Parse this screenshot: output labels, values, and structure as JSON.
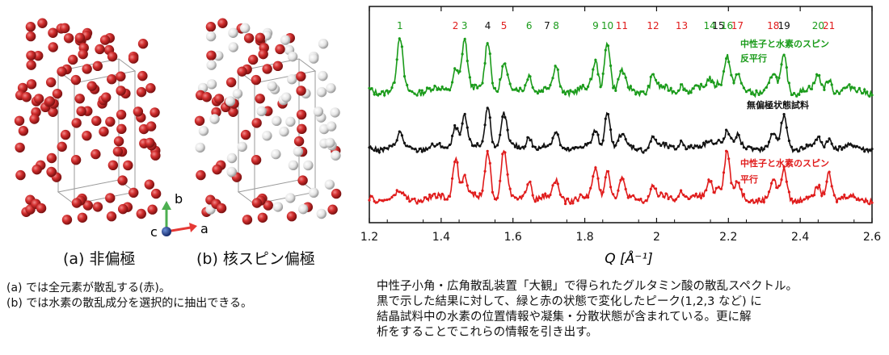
{
  "left_panel": {
    "caption_a": "(a) 非偏極",
    "caption_b": "(b) 核スピン偏極",
    "axes": {
      "b_label": "b",
      "a_label": "a",
      "c_label": "c"
    },
    "description": [
      "(a) では全元素が散乱する(赤)。",
      "(b) では水素の散乱成分を選択的に抽出できる。"
    ],
    "colors": {
      "atom_red": "#c62828",
      "atom_white": "#e6e6e6",
      "axis_b": "#4caf50",
      "axis_a": "#e53935",
      "axis_c": "#1e3a8a"
    }
  },
  "right_panel": {
    "description": [
      "中性子小角・広角散乱装置「大観」で得られたグルタミン酸の散乱スペクトル。",
      "黒で示した結果に対して、緑と赤の状態で変化したピーク(1,2,3 など) に",
      "結晶試料中の水素の位置情報や凝集・分散状態が含まれている。更に解",
      "析をすることでこれらの情報を引き出す。"
    ]
  },
  "chart_data": {
    "type": "line",
    "xlabel": "Q [Å⁻¹]",
    "xlim": [
      1.2,
      2.6
    ],
    "xticks": [
      "1.2",
      "1.4",
      "1.6",
      "1.8",
      "2",
      "2.2",
      "2.4",
      "2.6"
    ],
    "peak_labels": [
      {
        "label": "1",
        "q": 1.285,
        "color": "#1a9b1a"
      },
      {
        "label": "2",
        "q": 1.44,
        "color": "#e01b1b"
      },
      {
        "label": "3",
        "q": 1.465,
        "color": "#1a9b1a"
      },
      {
        "label": "4",
        "q": 1.53,
        "color": "#111111"
      },
      {
        "label": "5",
        "q": 1.575,
        "color": "#e01b1b"
      },
      {
        "label": "6",
        "q": 1.645,
        "color": "#1a9b1a"
      },
      {
        "label": "7",
        "q": 1.695,
        "color": "#111111"
      },
      {
        "label": "8",
        "q": 1.72,
        "color": "#1a9b1a"
      },
      {
        "label": "9",
        "q": 1.83,
        "color": "#1a9b1a"
      },
      {
        "label": "10",
        "q": 1.863,
        "color": "#1a9b1a"
      },
      {
        "label": "11",
        "q": 1.903,
        "color": "#e01b1b"
      },
      {
        "label": "12",
        "q": 1.99,
        "color": "#e01b1b"
      },
      {
        "label": "13",
        "q": 2.07,
        "color": "#e01b1b"
      },
      {
        "label": "14",
        "q": 2.148,
        "color": "#1a9b1a"
      },
      {
        "label": "15",
        "q": 2.172,
        "color": "#111111"
      },
      {
        "label": "16",
        "q": 2.196,
        "color": "#1a9b1a"
      },
      {
        "label": "17",
        "q": 2.225,
        "color": "#e01b1b"
      },
      {
        "label": "18",
        "q": 2.325,
        "color": "#e01b1b"
      },
      {
        "label": "19",
        "q": 2.355,
        "color": "#111111"
      },
      {
        "label": "20",
        "q": 2.45,
        "color": "#1a9b1a"
      },
      {
        "label": "21",
        "q": 2.48,
        "color": "#e01b1b"
      }
    ],
    "series": [
      {
        "label": "中性子と水素のスピン\n反平行",
        "color": "#1a9b1a",
        "peaks": [
          [
            1.285,
            1.0
          ],
          [
            1.44,
            0.45
          ],
          [
            1.465,
            1.0
          ],
          [
            1.53,
            1.0
          ],
          [
            1.575,
            0.5
          ],
          [
            1.645,
            0.35
          ],
          [
            1.72,
            0.45
          ],
          [
            1.83,
            0.55
          ],
          [
            1.863,
            1.0
          ],
          [
            1.903,
            0.35
          ],
          [
            1.99,
            0.3
          ],
          [
            2.07,
            0.15
          ],
          [
            2.148,
            0.25
          ],
          [
            2.172,
            0.2
          ],
          [
            2.196,
            0.7
          ],
          [
            2.225,
            0.25
          ],
          [
            2.325,
            0.3
          ],
          [
            2.355,
            0.65
          ],
          [
            2.45,
            0.25
          ],
          [
            2.48,
            0.25
          ]
        ]
      },
      {
        "label": "無偏極状態試料",
        "color": "#111111",
        "peaks": [
          [
            1.285,
            0.3
          ],
          [
            1.44,
            0.55
          ],
          [
            1.465,
            0.75
          ],
          [
            1.53,
            1.0
          ],
          [
            1.575,
            0.8
          ],
          [
            1.645,
            0.3
          ],
          [
            1.72,
            0.35
          ],
          [
            1.83,
            0.4
          ],
          [
            1.863,
            0.85
          ],
          [
            1.903,
            0.3
          ],
          [
            1.99,
            0.25
          ],
          [
            2.07,
            0.2
          ],
          [
            2.148,
            0.2
          ],
          [
            2.172,
            0.2
          ],
          [
            2.196,
            0.4
          ],
          [
            2.225,
            0.25
          ],
          [
            2.325,
            0.3
          ],
          [
            2.355,
            0.75
          ],
          [
            2.45,
            0.2
          ],
          [
            2.48,
            0.25
          ]
        ]
      },
      {
        "label": "中性子と水素のスピン\n平行",
        "color": "#e01b1b",
        "peaks": [
          [
            1.285,
            0.1
          ],
          [
            1.44,
            0.9
          ],
          [
            1.465,
            0.5
          ],
          [
            1.53,
            1.0
          ],
          [
            1.575,
            1.0
          ],
          [
            1.645,
            0.4
          ],
          [
            1.72,
            0.35
          ],
          [
            1.83,
            0.6
          ],
          [
            1.863,
            0.65
          ],
          [
            1.903,
            0.35
          ],
          [
            1.99,
            0.25
          ],
          [
            2.07,
            0.2
          ],
          [
            2.148,
            0.35
          ],
          [
            2.172,
            0.3
          ],
          [
            2.196,
            1.0
          ],
          [
            2.225,
            0.3
          ],
          [
            2.325,
            0.35
          ],
          [
            2.355,
            0.6
          ],
          [
            2.45,
            0.2
          ],
          [
            2.48,
            0.55
          ]
        ]
      }
    ],
    "annotations": {
      "green": [
        "中性子と水素のスピン",
        "反平行"
      ],
      "black": [
        "無偏極状態試料"
      ],
      "red": [
        "中性子と水素のスピン",
        "平行"
      ]
    }
  }
}
